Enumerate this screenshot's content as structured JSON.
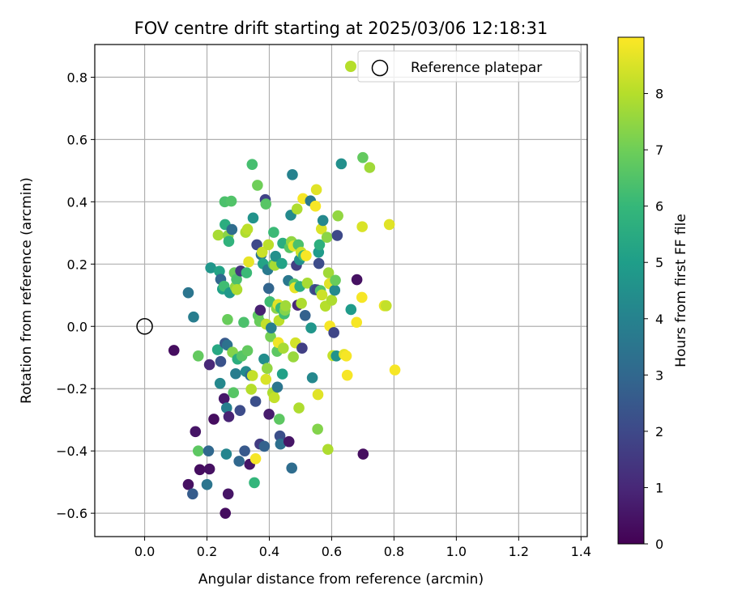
{
  "chart_data": {
    "type": "scatter",
    "title": "FOV centre drift starting at 2025/03/06 12:18:31",
    "xlabel": "Angular distance from reference (arcmin)",
    "ylabel": "Rotation from reference (arcmin)",
    "xlim": [
      -0.16,
      1.42
    ],
    "ylim": [
      -0.675,
      0.905
    ],
    "xticks": [
      0.0,
      0.2,
      0.4,
      0.6,
      0.8,
      1.0,
      1.2,
      1.4
    ],
    "xtick_labels": [
      "0.0",
      "0.2",
      "0.4",
      "0.6",
      "0.8",
      "1.0",
      "1.2",
      "1.4"
    ],
    "yticks": [
      -0.6,
      -0.4,
      -0.2,
      0.0,
      0.2,
      0.4,
      0.6,
      0.8
    ],
    "ytick_labels": [
      "−0.6",
      "−0.4",
      "−0.2",
      "0.0",
      "0.2",
      "0.4",
      "0.6",
      "0.8"
    ],
    "grid": true,
    "legend": {
      "position": "top-right",
      "entries": [
        "Reference platepar"
      ]
    },
    "reference_point": {
      "x": 0.0,
      "y": 0.0
    },
    "colorbar": {
      "label": "Hours from first FF file",
      "min": 0,
      "max": 9,
      "ticks": [
        0,
        1,
        2,
        3,
        4,
        5,
        6,
        7,
        8
      ],
      "tick_labels": [
        "0",
        "1",
        "2",
        "3",
        "4",
        "5",
        "6",
        "7",
        "8"
      ],
      "colormap": "viridis"
    },
    "colormap_stops": [
      "#440154",
      "#482878",
      "#3e4989",
      "#31688e",
      "#26828e",
      "#1f9e89",
      "#35b779",
      "#6ece58",
      "#b5de2b",
      "#fde725"
    ],
    "points": [
      {
        "x": 0.094,
        "y": -0.077,
        "c": 0.3
      },
      {
        "x": 0.14,
        "y": -0.508,
        "c": 0.4
      },
      {
        "x": 0.14,
        "y": 0.108,
        "c": 3.5
      },
      {
        "x": 0.154,
        "y": -0.538,
        "c": 2.6
      },
      {
        "x": 0.157,
        "y": 0.03,
        "c": 3.8
      },
      {
        "x": 0.163,
        "y": -0.338,
        "c": 0.5
      },
      {
        "x": 0.172,
        "y": -0.4,
        "c": 6.7
      },
      {
        "x": 0.172,
        "y": -0.095,
        "c": 6.8
      },
      {
        "x": 0.177,
        "y": -0.46,
        "c": 0.3
      },
      {
        "x": 0.2,
        "y": -0.508,
        "c": 3.5
      },
      {
        "x": 0.205,
        "y": -0.4,
        "c": 3.0
      },
      {
        "x": 0.208,
        "y": -0.458,
        "c": 0.4
      },
      {
        "x": 0.208,
        "y": -0.123,
        "c": 1.0
      },
      {
        "x": 0.212,
        "y": 0.188,
        "c": 4.7
      },
      {
        "x": 0.222,
        "y": -0.298,
        "c": 0.3
      },
      {
        "x": 0.234,
        "y": -0.075,
        "c": 5.4
      },
      {
        "x": 0.236,
        "y": 0.293,
        "c": 7.8
      },
      {
        "x": 0.24,
        "y": 0.177,
        "c": 5.2
      },
      {
        "x": 0.242,
        "y": -0.183,
        "c": 4.2
      },
      {
        "x": 0.244,
        "y": 0.151,
        "c": 3.0
      },
      {
        "x": 0.244,
        "y": -0.113,
        "c": 2.3
      },
      {
        "x": 0.25,
        "y": 0.12,
        "c": 5.1
      },
      {
        "x": 0.255,
        "y": 0.129,
        "c": 6.2
      },
      {
        "x": 0.255,
        "y": -0.232,
        "c": 0.6
      },
      {
        "x": 0.257,
        "y": 0.4,
        "c": 6.4
      },
      {
        "x": 0.258,
        "y": 0.327,
        "c": 5.6
      },
      {
        "x": 0.258,
        "y": -0.054,
        "c": 2.5
      },
      {
        "x": 0.259,
        "y": -0.6,
        "c": 0.3
      },
      {
        "x": 0.262,
        "y": -0.41,
        "c": 4.1
      },
      {
        "x": 0.263,
        "y": -0.262,
        "c": 3.9
      },
      {
        "x": 0.265,
        "y": -0.06,
        "c": 3.4
      },
      {
        "x": 0.266,
        "y": 0.022,
        "c": 6.9
      },
      {
        "x": 0.268,
        "y": 0.292,
        "c": 7.4
      },
      {
        "x": 0.268,
        "y": -0.538,
        "c": 0.5
      },
      {
        "x": 0.27,
        "y": 0.273,
        "c": 5.8
      },
      {
        "x": 0.27,
        "y": -0.29,
        "c": 0.9
      },
      {
        "x": 0.273,
        "y": 0.108,
        "c": 4.8
      },
      {
        "x": 0.278,
        "y": 0.402,
        "c": 6.5
      },
      {
        "x": 0.28,
        "y": 0.311,
        "c": 3.2
      },
      {
        "x": 0.282,
        "y": -0.083,
        "c": 7.3
      },
      {
        "x": 0.285,
        "y": -0.213,
        "c": 6.6
      },
      {
        "x": 0.288,
        "y": 0.172,
        "c": 6.9
      },
      {
        "x": 0.291,
        "y": 0.127,
        "c": 7.5
      },
      {
        "x": 0.292,
        "y": -0.152,
        "c": 3.8
      },
      {
        "x": 0.295,
        "y": 0.151,
        "c": 6.4
      },
      {
        "x": 0.296,
        "y": 0.118,
        "c": 7.9
      },
      {
        "x": 0.298,
        "y": -0.105,
        "c": 5.6
      },
      {
        "x": 0.303,
        "y": -0.433,
        "c": 3.0
      },
      {
        "x": 0.306,
        "y": -0.27,
        "c": 2.1
      },
      {
        "x": 0.308,
        "y": 0.178,
        "c": 1.4
      },
      {
        "x": 0.312,
        "y": -0.095,
        "c": 6.6
      },
      {
        "x": 0.318,
        "y": 0.013,
        "c": 6.4
      },
      {
        "x": 0.321,
        "y": -0.4,
        "c": 2.5
      },
      {
        "x": 0.324,
        "y": 0.302,
        "c": 7.9
      },
      {
        "x": 0.325,
        "y": -0.145,
        "c": 4.3
      },
      {
        "x": 0.327,
        "y": 0.172,
        "c": 6.1
      },
      {
        "x": 0.33,
        "y": -0.078,
        "c": 6.8
      },
      {
        "x": 0.33,
        "y": 0.312,
        "c": 8.1
      },
      {
        "x": 0.334,
        "y": 0.207,
        "c": 8.7
      },
      {
        "x": 0.337,
        "y": -0.443,
        "c": 0.5
      },
      {
        "x": 0.339,
        "y": -0.157,
        "c": 3.2
      },
      {
        "x": 0.342,
        "y": -0.202,
        "c": 8.0
      },
      {
        "x": 0.345,
        "y": 0.52,
        "c": 6.3
      },
      {
        "x": 0.346,
        "y": -0.158,
        "c": 8.2
      },
      {
        "x": 0.348,
        "y": 0.348,
        "c": 4.6
      },
      {
        "x": 0.352,
        "y": -0.502,
        "c": 5.9
      },
      {
        "x": 0.356,
        "y": -0.241,
        "c": 2.2
      },
      {
        "x": 0.356,
        "y": -0.425,
        "c": 8.9
      },
      {
        "x": 0.36,
        "y": 0.262,
        "c": 2.0
      },
      {
        "x": 0.362,
        "y": 0.453,
        "c": 7.0
      },
      {
        "x": 0.364,
        "y": 0.035,
        "c": 6.7
      },
      {
        "x": 0.369,
        "y": 0.016,
        "c": 6.9
      },
      {
        "x": 0.37,
        "y": -0.378,
        "c": 1.6
      },
      {
        "x": 0.371,
        "y": 0.052,
        "c": 0.8
      },
      {
        "x": 0.374,
        "y": 0.23,
        "c": 3.4
      },
      {
        "x": 0.377,
        "y": 0.238,
        "c": 8.3
      },
      {
        "x": 0.38,
        "y": 0.201,
        "c": 5.2
      },
      {
        "x": 0.383,
        "y": -0.105,
        "c": 4.4
      },
      {
        "x": 0.384,
        "y": -0.385,
        "c": 2.8
      },
      {
        "x": 0.387,
        "y": 0.407,
        "c": 1.8
      },
      {
        "x": 0.389,
        "y": -0.17,
        "c": 8.5
      },
      {
        "x": 0.389,
        "y": 0.393,
        "c": 6.6
      },
      {
        "x": 0.39,
        "y": 0.007,
        "c": 8.2
      },
      {
        "x": 0.393,
        "y": -0.135,
        "c": 7.5
      },
      {
        "x": 0.395,
        "y": 0.182,
        "c": 3.7
      },
      {
        "x": 0.397,
        "y": 0.262,
        "c": 8.1
      },
      {
        "x": 0.398,
        "y": 0.122,
        "c": 2.9
      },
      {
        "x": 0.399,
        "y": -0.282,
        "c": 0.7
      },
      {
        "x": 0.402,
        "y": 0.079,
        "c": 6.2
      },
      {
        "x": 0.404,
        "y": -0.033,
        "c": 7.1
      },
      {
        "x": 0.406,
        "y": -0.005,
        "c": 3.8
      },
      {
        "x": 0.411,
        "y": -0.213,
        "c": 7.9
      },
      {
        "x": 0.413,
        "y": 0.199,
        "c": 6.5
      },
      {
        "x": 0.414,
        "y": 0.302,
        "c": 6.1
      },
      {
        "x": 0.416,
        "y": -0.229,
        "c": 8.2
      },
      {
        "x": 0.418,
        "y": 0.196,
        "c": 7.8
      },
      {
        "x": 0.42,
        "y": 0.225,
        "c": 4.5
      },
      {
        "x": 0.423,
        "y": 0.058,
        "c": 7.4
      },
      {
        "x": 0.425,
        "y": -0.08,
        "c": 6.7
      },
      {
        "x": 0.426,
        "y": -0.195,
        "c": 3.5
      },
      {
        "x": 0.428,
        "y": 0.07,
        "c": 8.6
      },
      {
        "x": 0.429,
        "y": -0.052,
        "c": 8.8
      },
      {
        "x": 0.431,
        "y": 0.019,
        "c": 8.1
      },
      {
        "x": 0.432,
        "y": -0.298,
        "c": 6.7
      },
      {
        "x": 0.434,
        "y": -0.352,
        "c": 2.2
      },
      {
        "x": 0.436,
        "y": -0.378,
        "c": 3.3
      },
      {
        "x": 0.437,
        "y": 0.059,
        "c": 6.0
      },
      {
        "x": 0.44,
        "y": 0.202,
        "c": 5.2
      },
      {
        "x": 0.442,
        "y": -0.153,
        "c": 5.1
      },
      {
        "x": 0.443,
        "y": 0.267,
        "c": 5.6
      },
      {
        "x": 0.445,
        "y": -0.07,
        "c": 7.8
      },
      {
        "x": 0.448,
        "y": 0.04,
        "c": 6.2
      },
      {
        "x": 0.45,
        "y": 0.052,
        "c": 7.3
      },
      {
        "x": 0.452,
        "y": 0.066,
        "c": 7.7
      },
      {
        "x": 0.461,
        "y": 0.147,
        "c": 3.6
      },
      {
        "x": 0.463,
        "y": -0.37,
        "c": 0.5
      },
      {
        "x": 0.465,
        "y": 0.253,
        "c": 6.6
      },
      {
        "x": 0.469,
        "y": 0.357,
        "c": 4.3
      },
      {
        "x": 0.471,
        "y": 0.272,
        "c": 7.5
      },
      {
        "x": 0.472,
        "y": -0.455,
        "c": 3.2
      },
      {
        "x": 0.474,
        "y": 0.487,
        "c": 4.0
      },
      {
        "x": 0.477,
        "y": -0.098,
        "c": 7.6
      },
      {
        "x": 0.478,
        "y": 0.258,
        "c": 8.6
      },
      {
        "x": 0.48,
        "y": 0.136,
        "c": 6.5
      },
      {
        "x": 0.482,
        "y": 0.124,
        "c": 8.7
      },
      {
        "x": 0.484,
        "y": -0.053,
        "c": 8.4
      },
      {
        "x": 0.487,
        "y": 0.196,
        "c": 1.7
      },
      {
        "x": 0.489,
        "y": 0.377,
        "c": 7.9
      },
      {
        "x": 0.491,
        "y": 0.068,
        "c": 1.0
      },
      {
        "x": 0.493,
        "y": 0.262,
        "c": 6.4
      },
      {
        "x": 0.495,
        "y": -0.262,
        "c": 7.9
      },
      {
        "x": 0.497,
        "y": 0.214,
        "c": 4.5
      },
      {
        "x": 0.498,
        "y": 0.128,
        "c": 5.6
      },
      {
        "x": 0.502,
        "y": 0.238,
        "c": 8.3
      },
      {
        "x": 0.503,
        "y": 0.074,
        "c": 7.9
      },
      {
        "x": 0.505,
        "y": -0.07,
        "c": 1.7
      },
      {
        "x": 0.508,
        "y": 0.41,
        "c": 8.9
      },
      {
        "x": 0.51,
        "y": 0.227,
        "c": 6.1
      },
      {
        "x": 0.515,
        "y": 0.035,
        "c": 2.8
      },
      {
        "x": 0.518,
        "y": 0.227,
        "c": 8.9
      },
      {
        "x": 0.522,
        "y": 0.139,
        "c": 7.8
      },
      {
        "x": 0.532,
        "y": 0.403,
        "c": 3.6
      },
      {
        "x": 0.534,
        "y": -0.005,
        "c": 4.7
      },
      {
        "x": 0.538,
        "y": -0.165,
        "c": 4.2
      },
      {
        "x": 0.546,
        "y": 0.118,
        "c": 2.5
      },
      {
        "x": 0.548,
        "y": 0.386,
        "c": 8.9
      },
      {
        "x": 0.551,
        "y": 0.439,
        "c": 8.6
      },
      {
        "x": 0.553,
        "y": 0.117,
        "c": 1.8
      },
      {
        "x": 0.555,
        "y": -0.33,
        "c": 7.3
      },
      {
        "x": 0.556,
        "y": -0.219,
        "c": 8.6
      },
      {
        "x": 0.558,
        "y": 0.238,
        "c": 4.9
      },
      {
        "x": 0.559,
        "y": 0.202,
        "c": 2.1
      },
      {
        "x": 0.561,
        "y": 0.262,
        "c": 5.7
      },
      {
        "x": 0.564,
        "y": 0.115,
        "c": 6.5
      },
      {
        "x": 0.567,
        "y": 0.313,
        "c": 8.5
      },
      {
        "x": 0.569,
        "y": 0.101,
        "c": 8.3
      },
      {
        "x": 0.572,
        "y": 0.34,
        "c": 4.2
      },
      {
        "x": 0.58,
        "y": 0.065,
        "c": 8.0
      },
      {
        "x": 0.585,
        "y": 0.286,
        "c": 7.4
      },
      {
        "x": 0.588,
        "y": -0.395,
        "c": 7.9
      },
      {
        "x": 0.59,
        "y": 0.172,
        "c": 7.7
      },
      {
        "x": 0.593,
        "y": 0.137,
        "c": 8.6
      },
      {
        "x": 0.594,
        "y": 0.001,
        "c": 8.9
      },
      {
        "x": 0.6,
        "y": 0.084,
        "c": 7.9
      },
      {
        "x": 0.604,
        "y": -0.094,
        "c": 8.2
      },
      {
        "x": 0.607,
        "y": -0.02,
        "c": 1.9
      },
      {
        "x": 0.61,
        "y": 0.116,
        "c": 4.3
      },
      {
        "x": 0.612,
        "y": 0.148,
        "c": 6.9
      },
      {
        "x": 0.615,
        "y": -0.095,
        "c": 4.6
      },
      {
        "x": 0.618,
        "y": 0.292,
        "c": 2.0
      },
      {
        "x": 0.62,
        "y": 0.355,
        "c": 7.5
      },
      {
        "x": 0.631,
        "y": 0.522,
        "c": 4.5
      },
      {
        "x": 0.64,
        "y": -0.09,
        "c": 8.7
      },
      {
        "x": 0.647,
        "y": -0.095,
        "c": 8.9
      },
      {
        "x": 0.65,
        "y": -0.157,
        "c": 8.9
      },
      {
        "x": 0.662,
        "y": 0.054,
        "c": 4.9
      },
      {
        "x": 0.68,
        "y": 0.013,
        "c": 8.9
      },
      {
        "x": 0.681,
        "y": 0.15,
        "c": 0.4
      },
      {
        "x": 0.697,
        "y": 0.093,
        "c": 8.9
      },
      {
        "x": 0.698,
        "y": 0.32,
        "c": 8.5
      },
      {
        "x": 0.7,
        "y": 0.542,
        "c": 6.8
      },
      {
        "x": 0.701,
        "y": -0.41,
        "c": 0.3
      },
      {
        "x": 0.722,
        "y": 0.51,
        "c": 7.7
      },
      {
        "x": 0.769,
        "y": 0.066,
        "c": 8.7
      },
      {
        "x": 0.775,
        "y": 0.066,
        "c": 8.2
      },
      {
        "x": 0.785,
        "y": 0.327,
        "c": 8.6
      },
      {
        "x": 0.803,
        "y": -0.14,
        "c": 8.9
      }
    ]
  }
}
